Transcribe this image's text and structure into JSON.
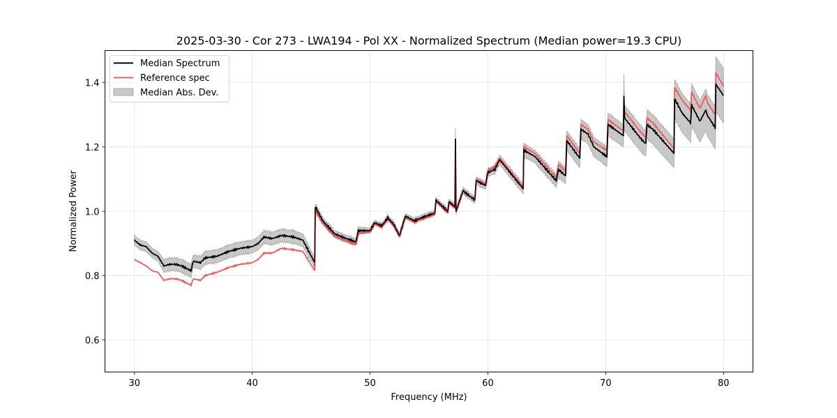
{
  "chart_data": {
    "type": "line",
    "title": "2025-03-30 - Cor 273 - LWA194 - Pol XX - Normalized Spectrum (Median power=19.3 CPU)",
    "xlabel": "Frequency (MHz)",
    "ylabel": "Normalized Power",
    "xlim": [
      27.5,
      82.5
    ],
    "ylim": [
      0.5,
      1.5
    ],
    "xticks": [
      30,
      40,
      50,
      60,
      70,
      80
    ],
    "xtick_labels": [
      "30",
      "40",
      "50",
      "60",
      "70",
      "80"
    ],
    "yticks": [
      0.6,
      0.8,
      1.0,
      1.2,
      1.4
    ],
    "ytick_labels": [
      "0.6",
      "0.8",
      "1.0",
      "1.2",
      "1.4"
    ],
    "grid": true,
    "legend_position": "top-left",
    "legend": [
      {
        "label": "Median Spectrum",
        "kind": "line",
        "color": "#000000"
      },
      {
        "label": "Reference spec",
        "kind": "line",
        "color": "#f05a5a"
      },
      {
        "label": "Median Abs. Dev.",
        "kind": "band",
        "color": "#bdbdbd"
      }
    ],
    "x": [
      30.0,
      30.5,
      31.0,
      31.5,
      32.0,
      32.5,
      33.0,
      33.5,
      34.0,
      34.8,
      35.0,
      35.6,
      36.0,
      37.0,
      38.0,
      39.0,
      40.0,
      40.5,
      41.0,
      41.7,
      42.5,
      43.5,
      44.3,
      45.3,
      45.35,
      46.0,
      47.0,
      48.0,
      48.8,
      49.0,
      50.0,
      50.4,
      51.0,
      51.5,
      52.0,
      52.5,
      53.0,
      53.8,
      54.0,
      55.5,
      55.6,
      56.6,
      56.7,
      57.2,
      57.25,
      57.3,
      57.9,
      58.0,
      58.9,
      59.0,
      59.8,
      60.0,
      60.6,
      61.0,
      63.0,
      63.05,
      64.0,
      65.8,
      66.0,
      66.6,
      66.7,
      67.8,
      67.9,
      68.5,
      69.0,
      70.1,
      70.2,
      71.5,
      71.55,
      71.6,
      73.0,
      73.4,
      73.5,
      74.0,
      75.8,
      75.85,
      76.5,
      77.2,
      77.3,
      78.0,
      78.5,
      78.6,
      79.3,
      79.35,
      80.0
    ],
    "series": [
      {
        "name": "Median Spectrum",
        "color": "#000000",
        "values": [
          0.91,
          0.895,
          0.89,
          0.87,
          0.86,
          0.83,
          0.835,
          0.835,
          0.83,
          0.815,
          0.845,
          0.84,
          0.855,
          0.86,
          0.875,
          0.885,
          0.89,
          0.9,
          0.92,
          0.915,
          0.925,
          0.92,
          0.91,
          0.84,
          1.015,
          0.97,
          0.93,
          0.915,
          0.905,
          0.94,
          0.94,
          0.965,
          0.955,
          0.98,
          0.96,
          0.925,
          0.985,
          0.97,
          0.975,
          0.995,
          1.035,
          1.0,
          1.03,
          1.015,
          1.225,
          1.0,
          1.065,
          1.06,
          1.035,
          1.095,
          1.08,
          1.12,
          1.13,
          1.16,
          1.07,
          1.19,
          1.17,
          1.095,
          1.13,
          1.11,
          1.22,
          1.165,
          1.255,
          1.24,
          1.2,
          1.17,
          1.27,
          1.235,
          1.36,
          1.29,
          1.225,
          1.21,
          1.27,
          1.255,
          1.18,
          1.35,
          1.305,
          1.275,
          1.33,
          1.28,
          1.315,
          1.3,
          1.26,
          1.395,
          1.36
        ]
      },
      {
        "name": "Reference spec",
        "color": "#f05a5a",
        "values": [
          0.85,
          0.84,
          0.83,
          0.815,
          0.81,
          0.785,
          0.79,
          0.79,
          0.785,
          0.77,
          0.79,
          0.785,
          0.8,
          0.81,
          0.825,
          0.835,
          0.84,
          0.85,
          0.87,
          0.87,
          0.885,
          0.88,
          0.875,
          0.815,
          1.0,
          0.96,
          0.92,
          0.905,
          0.895,
          0.93,
          0.935,
          0.96,
          0.95,
          0.975,
          0.955,
          0.92,
          0.98,
          0.965,
          0.97,
          0.99,
          1.03,
          0.995,
          1.025,
          1.01,
          1.12,
          1.0,
          1.065,
          1.06,
          1.035,
          1.1,
          1.085,
          1.13,
          1.14,
          1.165,
          1.075,
          1.2,
          1.18,
          1.105,
          1.145,
          1.125,
          1.235,
          1.18,
          1.27,
          1.255,
          1.215,
          1.19,
          1.285,
          1.25,
          1.33,
          1.31,
          1.245,
          1.23,
          1.29,
          1.275,
          1.195,
          1.385,
          1.345,
          1.315,
          1.37,
          1.32,
          1.36,
          1.34,
          1.3,
          1.43,
          1.39
        ]
      }
    ],
    "band": {
      "name": "Median Abs. Dev.",
      "color": "#bdbdbd",
      "half_width": [
        0.015,
        0.015,
        0.015,
        0.015,
        0.015,
        0.02,
        0.02,
        0.02,
        0.02,
        0.02,
        0.02,
        0.02,
        0.02,
        0.02,
        0.02,
        0.02,
        0.02,
        0.02,
        0.02,
        0.02,
        0.02,
        0.02,
        0.02,
        0.015,
        0.01,
        0.01,
        0.01,
        0.01,
        0.01,
        0.01,
        0.008,
        0.008,
        0.008,
        0.008,
        0.008,
        0.008,
        0.008,
        0.008,
        0.008,
        0.008,
        0.008,
        0.008,
        0.008,
        0.008,
        0.035,
        0.01,
        0.01,
        0.01,
        0.01,
        0.012,
        0.012,
        0.012,
        0.012,
        0.015,
        0.015,
        0.02,
        0.02,
        0.02,
        0.025,
        0.025,
        0.03,
        0.03,
        0.03,
        0.03,
        0.03,
        0.03,
        0.035,
        0.035,
        0.07,
        0.04,
        0.04,
        0.04,
        0.045,
        0.045,
        0.045,
        0.06,
        0.06,
        0.06,
        0.065,
        0.065,
        0.065,
        0.065,
        0.065,
        0.085,
        0.085
      ]
    }
  }
}
